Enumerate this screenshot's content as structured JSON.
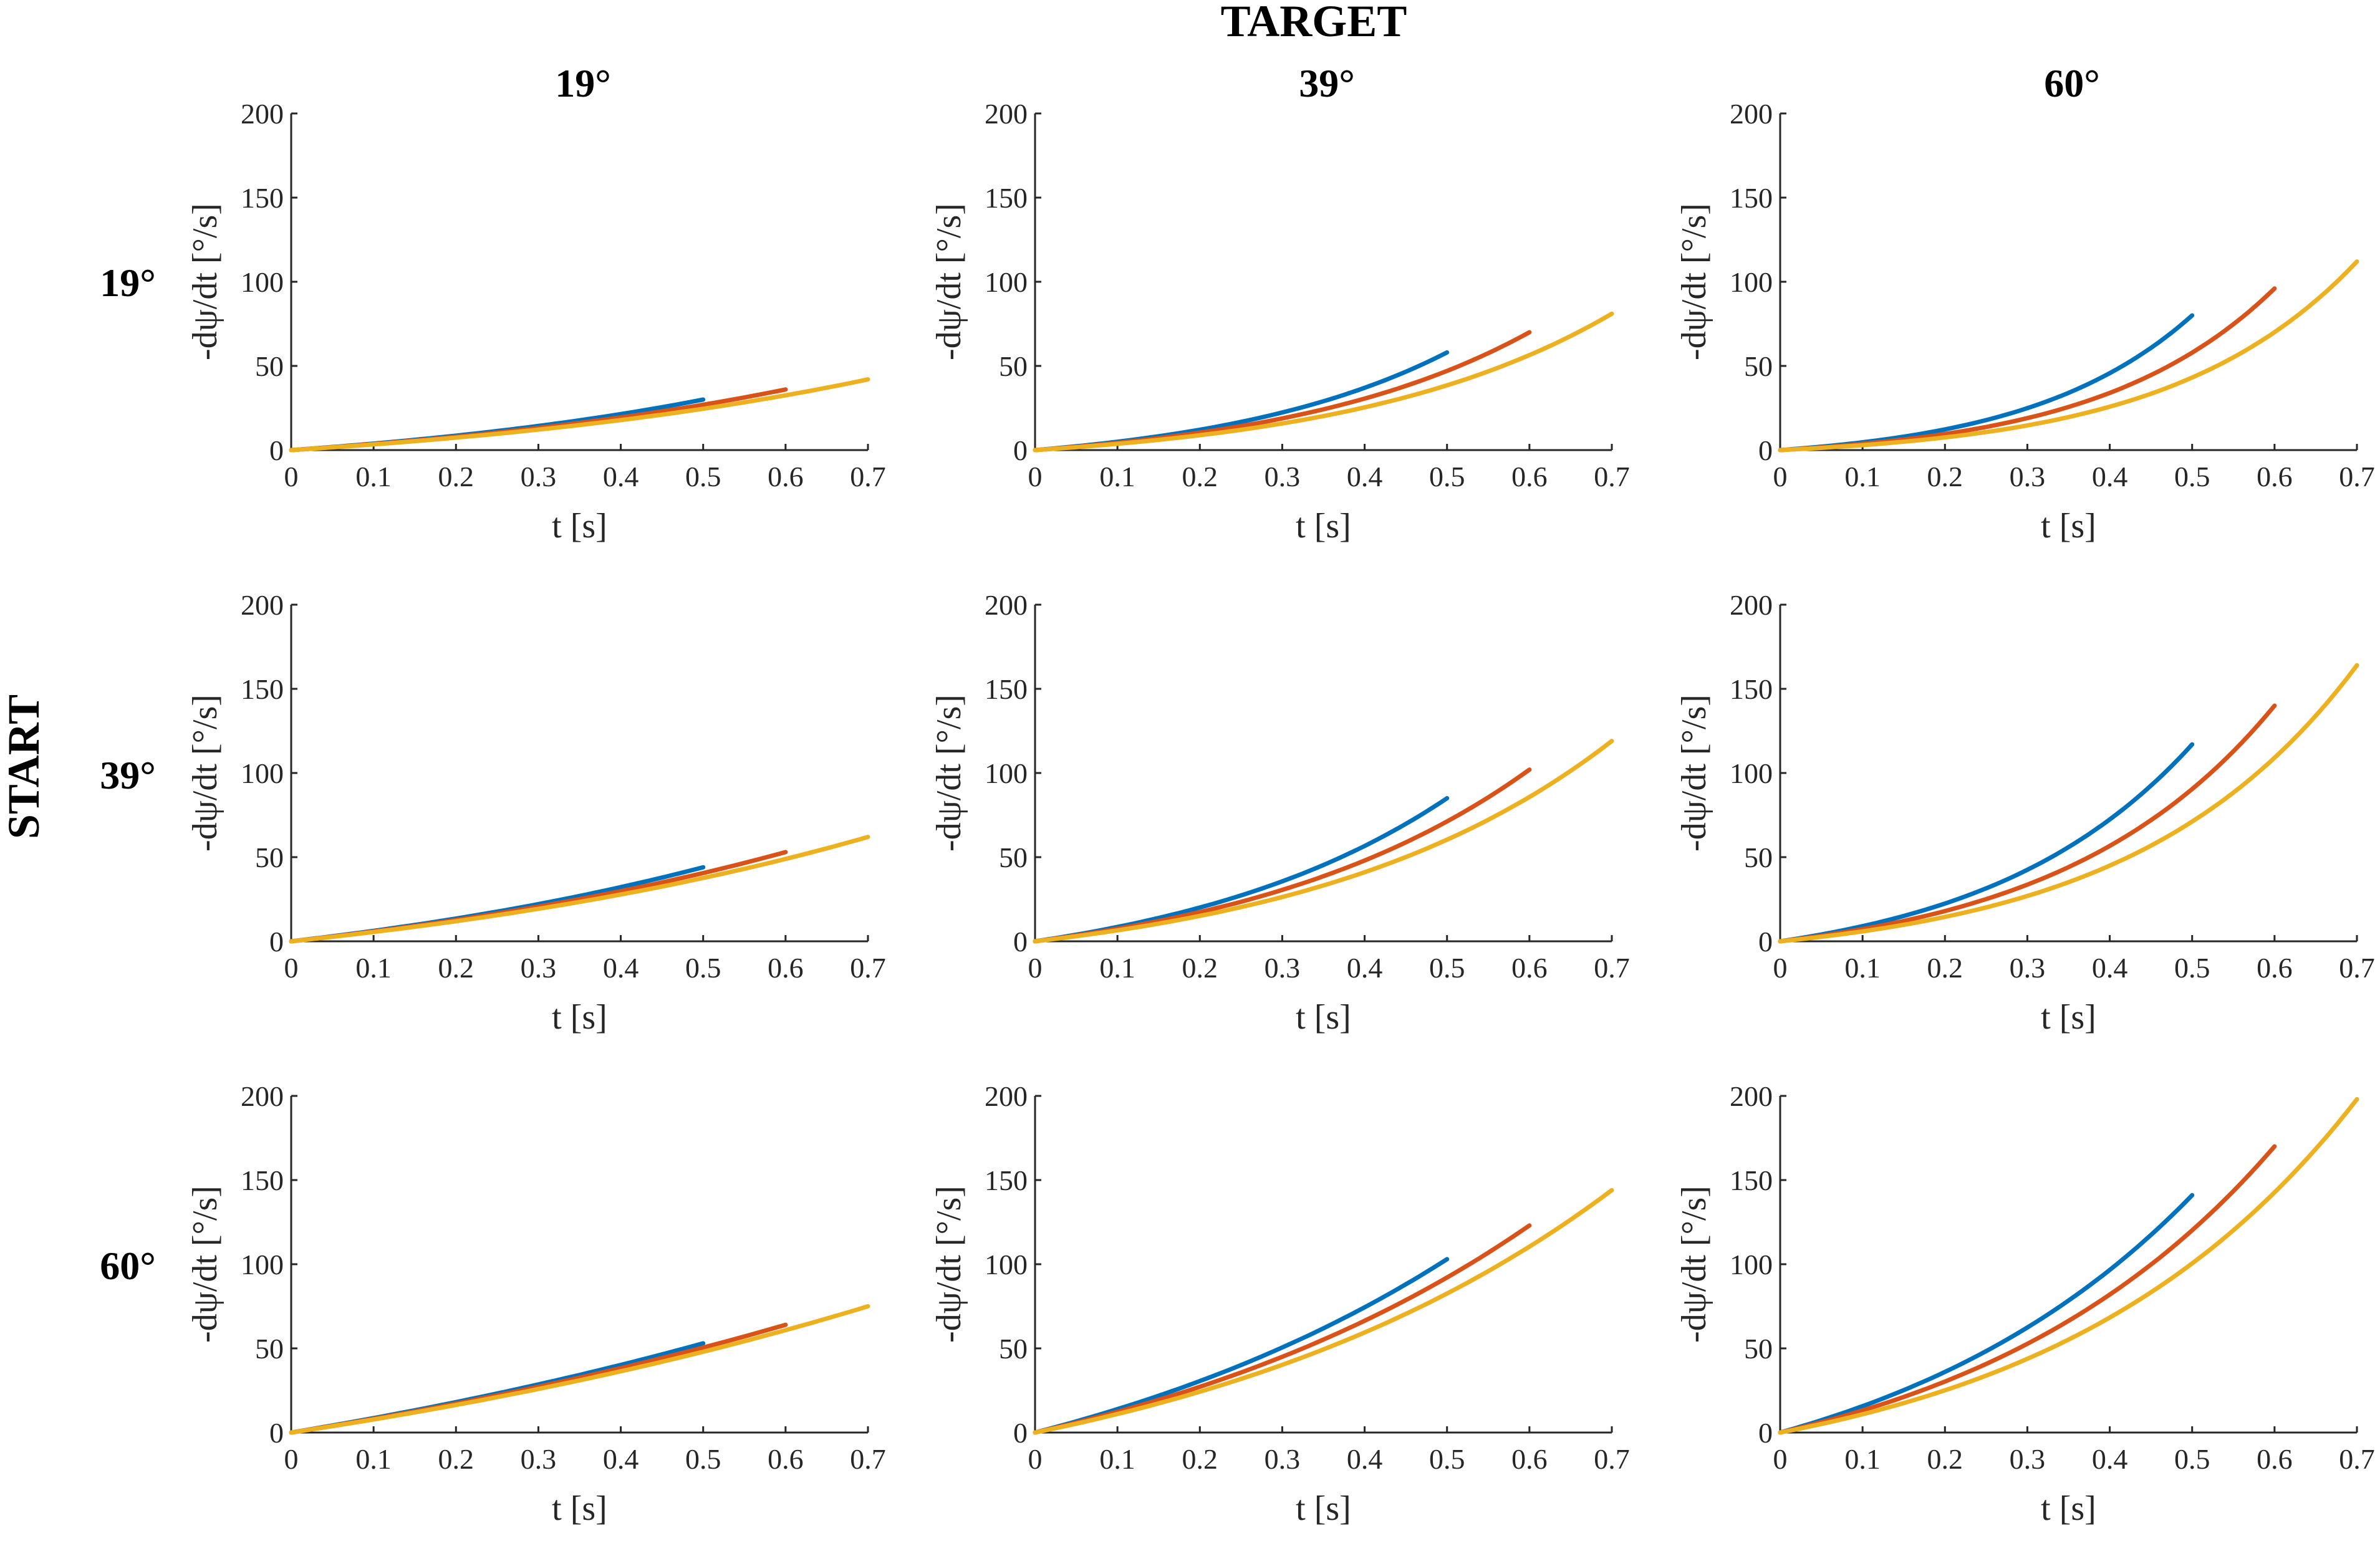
{
  "figure": {
    "target_label": "TARGET",
    "start_label": "START",
    "column_headers": [
      "19°",
      "39°",
      "60°"
    ],
    "row_headers": [
      "19°",
      "39°",
      "60°"
    ]
  },
  "chart_data": [
    {
      "type": "line",
      "row": "19°",
      "col": "19°",
      "xlabel": "t [s]",
      "ylabel": "-dψ/dt  [°/s]",
      "xlim": [
        0,
        0.7
      ],
      "ylim": [
        0,
        200
      ],
      "xticks": [
        "0",
        "0.1",
        "0.2",
        "0.3",
        "0.4",
        "0.5",
        "0.6",
        "0.7"
      ],
      "yticks": [
        "0",
        "50",
        "100",
        "150",
        "200"
      ],
      "series": [
        {
          "name": "blue",
          "color": "#0072BD",
          "x_end": 0.5,
          "y_end": 30,
          "k": 1.0
        },
        {
          "name": "red",
          "color": "#D95319",
          "x_end": 0.6,
          "y_end": 36,
          "k": 1.1
        },
        {
          "name": "yellow",
          "color": "#EDB120",
          "x_end": 0.7,
          "y_end": 42,
          "k": 1.2
        }
      ]
    },
    {
      "type": "line",
      "row": "19°",
      "col": "39°",
      "xlabel": "t [s]",
      "ylabel": "-dψ/dt  [°/s]",
      "xlim": [
        0,
        0.7
      ],
      "ylim": [
        0,
        200
      ],
      "xticks": [
        "0",
        "0.1",
        "0.2",
        "0.3",
        "0.4",
        "0.5",
        "0.6",
        "0.7"
      ],
      "yticks": [
        "0",
        "50",
        "100",
        "150",
        "200"
      ],
      "series": [
        {
          "name": "blue",
          "color": "#0072BD",
          "x_end": 0.5,
          "y_end": 58,
          "k": 1.8
        },
        {
          "name": "red",
          "color": "#D95319",
          "x_end": 0.6,
          "y_end": 70,
          "k": 2.0
        },
        {
          "name": "yellow",
          "color": "#EDB120",
          "x_end": 0.7,
          "y_end": 81,
          "k": 2.2
        }
      ]
    },
    {
      "type": "line",
      "row": "19°",
      "col": "60°",
      "xlabel": "t [s]",
      "ylabel": "-dψ/dt  [°/s]",
      "xlim": [
        0,
        0.7
      ],
      "ylim": [
        0,
        200
      ],
      "xticks": [
        "0",
        "0.1",
        "0.2",
        "0.3",
        "0.4",
        "0.5",
        "0.6",
        "0.7"
      ],
      "yticks": [
        "0",
        "50",
        "100",
        "150",
        "200"
      ],
      "series": [
        {
          "name": "blue",
          "color": "#0072BD",
          "x_end": 0.5,
          "y_end": 80,
          "k": 2.5
        },
        {
          "name": "red",
          "color": "#D95319",
          "x_end": 0.6,
          "y_end": 96,
          "k": 2.8
        },
        {
          "name": "yellow",
          "color": "#EDB120",
          "x_end": 0.7,
          "y_end": 112,
          "k": 3.1
        }
      ]
    },
    {
      "type": "line",
      "row": "39°",
      "col": "19°",
      "xlabel": "t [s]",
      "ylabel": "-dψ/dt  [°/s]",
      "xlim": [
        0,
        0.7
      ],
      "ylim": [
        0,
        200
      ],
      "xticks": [
        "0",
        "0.1",
        "0.2",
        "0.3",
        "0.4",
        "0.5",
        "0.6",
        "0.7"
      ],
      "yticks": [
        "0",
        "50",
        "100",
        "150",
        "200"
      ],
      "series": [
        {
          "name": "blue",
          "color": "#0072BD",
          "x_end": 0.5,
          "y_end": 44,
          "k": 0.8
        },
        {
          "name": "red",
          "color": "#D95319",
          "x_end": 0.6,
          "y_end": 53,
          "k": 0.9
        },
        {
          "name": "yellow",
          "color": "#EDB120",
          "x_end": 0.7,
          "y_end": 62,
          "k": 1.0
        }
      ]
    },
    {
      "type": "line",
      "row": "39°",
      "col": "39°",
      "xlabel": "t [s]",
      "ylabel": "-dψ/dt  [°/s]",
      "xlim": [
        0,
        0.7
      ],
      "ylim": [
        0,
        200
      ],
      "xticks": [
        "0",
        "0.1",
        "0.2",
        "0.3",
        "0.4",
        "0.5",
        "0.6",
        "0.7"
      ],
      "yticks": [
        "0",
        "50",
        "100",
        "150",
        "200"
      ],
      "series": [
        {
          "name": "blue",
          "color": "#0072BD",
          "x_end": 0.5,
          "y_end": 85,
          "k": 1.5
        },
        {
          "name": "red",
          "color": "#D95319",
          "x_end": 0.6,
          "y_end": 102,
          "k": 1.7
        },
        {
          "name": "yellow",
          "color": "#EDB120",
          "x_end": 0.7,
          "y_end": 119,
          "k": 1.9
        }
      ]
    },
    {
      "type": "line",
      "row": "39°",
      "col": "60°",
      "xlabel": "t [s]",
      "ylabel": "-dψ/dt  [°/s]",
      "xlim": [
        0,
        0.7
      ],
      "ylim": [
        0,
        200
      ],
      "xticks": [
        "0",
        "0.1",
        "0.2",
        "0.3",
        "0.4",
        "0.5",
        "0.6",
        "0.7"
      ],
      "yticks": [
        "0",
        "50",
        "100",
        "150",
        "200"
      ],
      "series": [
        {
          "name": "blue",
          "color": "#0072BD",
          "x_end": 0.5,
          "y_end": 117,
          "k": 2.0
        },
        {
          "name": "red",
          "color": "#D95319",
          "x_end": 0.6,
          "y_end": 140,
          "k": 2.3
        },
        {
          "name": "yellow",
          "color": "#EDB120",
          "x_end": 0.7,
          "y_end": 164,
          "k": 2.6
        }
      ]
    },
    {
      "type": "line",
      "row": "60°",
      "col": "19°",
      "xlabel": "t [s]",
      "ylabel": "-dψ/dt  [°/s]",
      "xlim": [
        0,
        0.7
      ],
      "ylim": [
        0,
        200
      ],
      "xticks": [
        "0",
        "0.1",
        "0.2",
        "0.3",
        "0.4",
        "0.5",
        "0.6",
        "0.7"
      ],
      "yticks": [
        "0",
        "50",
        "100",
        "150",
        "200"
      ],
      "series": [
        {
          "name": "blue",
          "color": "#0072BD",
          "x_end": 0.5,
          "y_end": 53,
          "k": 0.5
        },
        {
          "name": "red",
          "color": "#D95319",
          "x_end": 0.6,
          "y_end": 64,
          "k": 0.6
        },
        {
          "name": "yellow",
          "color": "#EDB120",
          "x_end": 0.7,
          "y_end": 75,
          "k": 0.7
        }
      ]
    },
    {
      "type": "line",
      "row": "60°",
      "col": "39°",
      "xlabel": "t [s]",
      "ylabel": "-dψ/dt  [°/s]",
      "xlim": [
        0,
        0.7
      ],
      "ylim": [
        0,
        200
      ],
      "xticks": [
        "0",
        "0.1",
        "0.2",
        "0.3",
        "0.4",
        "0.5",
        "0.6",
        "0.7"
      ],
      "yticks": [
        "0",
        "50",
        "100",
        "150",
        "200"
      ],
      "series": [
        {
          "name": "blue",
          "color": "#0072BD",
          "x_end": 0.5,
          "y_end": 103,
          "k": 0.9
        },
        {
          "name": "red",
          "color": "#D95319",
          "x_end": 0.6,
          "y_end": 123,
          "k": 1.1
        },
        {
          "name": "yellow",
          "color": "#EDB120",
          "x_end": 0.7,
          "y_end": 144,
          "k": 1.3
        }
      ]
    },
    {
      "type": "line",
      "row": "60°",
      "col": "60°",
      "xlabel": "t [s]",
      "ylabel": "-dψ/dt  [°/s]",
      "xlim": [
        0,
        0.7
      ],
      "ylim": [
        0,
        200
      ],
      "xticks": [
        "0",
        "0.1",
        "0.2",
        "0.3",
        "0.4",
        "0.5",
        "0.6",
        "0.7"
      ],
      "yticks": [
        "0",
        "50",
        "100",
        "150",
        "200"
      ],
      "series": [
        {
          "name": "blue",
          "color": "#0072BD",
          "x_end": 0.5,
          "y_end": 141,
          "k": 1.3
        },
        {
          "name": "red",
          "color": "#D95319",
          "x_end": 0.6,
          "y_end": 170,
          "k": 1.6
        },
        {
          "name": "yellow",
          "color": "#EDB120",
          "x_end": 0.7,
          "y_end": 198,
          "k": 1.9
        }
      ]
    }
  ]
}
